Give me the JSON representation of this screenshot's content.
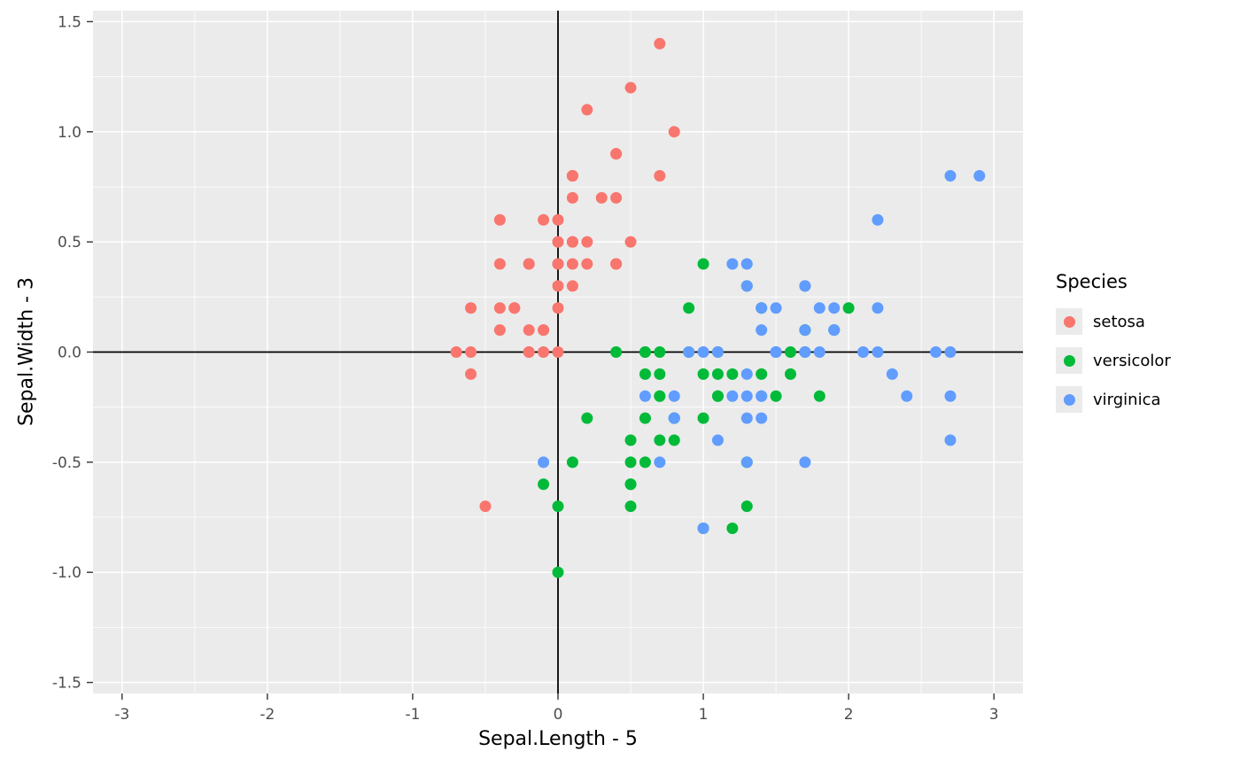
{
  "theme": {
    "panel_bg": "#EBEBEB",
    "grid_color": "#FFFFFF",
    "axis_line_color": "#000000",
    "tick_color": "#333333",
    "tick_label_color": "#4D4D4D",
    "legend_key_bg": "#EBEBEB"
  },
  "chart_data": {
    "type": "scatter",
    "title": "",
    "xlabel": "Sepal.Length - 5",
    "ylabel": "Sepal.Width - 3",
    "xlim": [
      -3.2,
      3.2
    ],
    "ylim": [
      -1.55,
      1.55
    ],
    "grid": true,
    "x_ticks": [
      -3,
      -2,
      -1,
      0,
      1,
      2,
      3
    ],
    "y_ticks": [
      -1.5,
      -1.0,
      -0.5,
      0.0,
      0.5,
      1.0,
      1.5
    ],
    "x_tick_labels": [
      "-3",
      "-2",
      "-1",
      "0",
      "1",
      "2",
      "3"
    ],
    "y_tick_labels": [
      "-1.5",
      "-1.0",
      "-0.5",
      "0.0",
      "0.5",
      "1.0",
      "1.5"
    ],
    "x_minor": [
      -2.5,
      -1.5,
      -0.5,
      0.5,
      1.5,
      2.5
    ],
    "y_minor": [
      -1.25,
      -0.75,
      -0.25,
      0.25,
      0.75,
      1.25
    ],
    "reference_lines": {
      "hline_y": 0,
      "vline_x": 0
    },
    "legend": {
      "title": "Species",
      "position": "right",
      "entries": [
        {
          "label": "setosa",
          "color": "#F8766D"
        },
        {
          "label": "versicolor",
          "color": "#00BA38"
        },
        {
          "label": "virginica",
          "color": "#619CFF"
        }
      ]
    },
    "series": [
      {
        "name": "setosa",
        "color": "#F8766D",
        "points": [
          [
            0.1,
            0.5
          ],
          [
            -0.1,
            0.0
          ],
          [
            -0.3,
            0.2
          ],
          [
            -0.4,
            0.1
          ],
          [
            0.0,
            0.6
          ],
          [
            0.4,
            0.9
          ],
          [
            -0.4,
            0.4
          ],
          [
            0.0,
            0.4
          ],
          [
            -0.6,
            -0.1
          ],
          [
            -0.1,
            0.1
          ],
          [
            0.4,
            0.7
          ],
          [
            -0.2,
            0.4
          ],
          [
            -0.2,
            0.0
          ],
          [
            -0.7,
            0.0
          ],
          [
            0.8,
            1.0
          ],
          [
            0.7,
            1.4
          ],
          [
            0.4,
            0.9
          ],
          [
            0.1,
            0.5
          ],
          [
            0.7,
            0.8
          ],
          [
            0.1,
            0.8
          ],
          [
            0.4,
            0.4
          ],
          [
            0.1,
            0.7
          ],
          [
            -0.4,
            0.6
          ],
          [
            0.1,
            0.3
          ],
          [
            -0.2,
            0.4
          ],
          [
            0.0,
            0.0
          ],
          [
            0.0,
            0.4
          ],
          [
            0.2,
            0.5
          ],
          [
            0.2,
            0.4
          ],
          [
            -0.3,
            0.2
          ],
          [
            -0.2,
            0.1
          ],
          [
            0.4,
            0.4
          ],
          [
            0.2,
            1.1
          ],
          [
            0.5,
            1.2
          ],
          [
            -0.1,
            0.1
          ],
          [
            0.0,
            0.2
          ],
          [
            0.5,
            0.5
          ],
          [
            -0.1,
            0.6
          ],
          [
            -0.6,
            0.0
          ],
          [
            0.1,
            0.4
          ],
          [
            0.0,
            0.5
          ],
          [
            -0.5,
            -0.7
          ],
          [
            -0.6,
            0.2
          ],
          [
            0.0,
            0.5
          ],
          [
            0.1,
            0.8
          ],
          [
            -0.2,
            0.0
          ],
          [
            0.1,
            0.8
          ],
          [
            -0.4,
            0.2
          ],
          [
            0.3,
            0.7
          ],
          [
            0.0,
            0.3
          ]
        ]
      },
      {
        "name": "versicolor",
        "color": "#00BA38",
        "points": [
          [
            2.0,
            0.2
          ],
          [
            1.4,
            0.2
          ],
          [
            1.9,
            0.1
          ],
          [
            0.5,
            -0.7
          ],
          [
            1.5,
            -0.2
          ],
          [
            0.7,
            -0.2
          ],
          [
            1.3,
            0.3
          ],
          [
            -0.1,
            -0.6
          ],
          [
            1.6,
            -0.1
          ],
          [
            0.2,
            -0.3
          ],
          [
            0.0,
            -1.0
          ],
          [
            0.9,
            0.0
          ],
          [
            1.0,
            -0.8
          ],
          [
            1.1,
            -0.1
          ],
          [
            0.6,
            -0.1
          ],
          [
            1.7,
            0.1
          ],
          [
            0.6,
            0.0
          ],
          [
            0.8,
            -0.3
          ],
          [
            1.2,
            -0.8
          ],
          [
            0.6,
            -0.5
          ],
          [
            0.9,
            0.2
          ],
          [
            1.1,
            -0.2
          ],
          [
            1.3,
            -0.5
          ],
          [
            1.1,
            -0.2
          ],
          [
            1.4,
            -0.1
          ],
          [
            1.6,
            0.0
          ],
          [
            1.8,
            -0.2
          ],
          [
            1.7,
            0.0
          ],
          [
            1.0,
            -0.1
          ],
          [
            0.7,
            -0.4
          ],
          [
            0.5,
            -0.6
          ],
          [
            0.5,
            -0.6
          ],
          [
            0.8,
            -0.3
          ],
          [
            1.0,
            -0.3
          ],
          [
            0.4,
            0.0
          ],
          [
            1.0,
            0.4
          ],
          [
            1.7,
            0.1
          ],
          [
            1.3,
            -0.7
          ],
          [
            0.6,
            0.0
          ],
          [
            0.5,
            -0.5
          ],
          [
            0.5,
            -0.4
          ],
          [
            1.1,
            0.0
          ],
          [
            0.8,
            -0.4
          ],
          [
            0.0,
            -0.7
          ],
          [
            0.6,
            -0.3
          ],
          [
            0.7,
            0.0
          ],
          [
            0.7,
            -0.1
          ],
          [
            1.2,
            -0.1
          ],
          [
            0.1,
            -0.5
          ],
          [
            0.7,
            -0.2
          ]
        ]
      },
      {
        "name": "virginica",
        "color": "#619CFF",
        "points": [
          [
            1.3,
            0.3
          ],
          [
            0.8,
            -0.3
          ],
          [
            2.1,
            0.0
          ],
          [
            1.3,
            -0.1
          ],
          [
            1.5,
            0.0
          ],
          [
            2.6,
            0.0
          ],
          [
            -0.1,
            -0.5
          ],
          [
            2.3,
            -0.1
          ],
          [
            1.7,
            -0.5
          ],
          [
            2.2,
            0.6
          ],
          [
            1.5,
            0.2
          ],
          [
            1.4,
            -0.3
          ],
          [
            1.8,
            0.0
          ],
          [
            0.7,
            -0.5
          ],
          [
            0.8,
            -0.2
          ],
          [
            1.4,
            0.2
          ],
          [
            1.5,
            0.0
          ],
          [
            2.7,
            0.8
          ],
          [
            2.7,
            -0.4
          ],
          [
            1.0,
            -0.8
          ],
          [
            1.9,
            0.2
          ],
          [
            0.6,
            -0.2
          ],
          [
            2.7,
            -0.2
          ],
          [
            1.3,
            -0.3
          ],
          [
            1.7,
            0.3
          ],
          [
            2.2,
            0.2
          ],
          [
            1.2,
            -0.2
          ],
          [
            1.1,
            0.0
          ],
          [
            1.4,
            -0.2
          ],
          [
            2.2,
            0.0
          ],
          [
            2.4,
            -0.2
          ],
          [
            2.9,
            0.8
          ],
          [
            1.4,
            -0.2
          ],
          [
            1.3,
            -0.2
          ],
          [
            1.1,
            -0.4
          ],
          [
            2.7,
            0.0
          ],
          [
            1.3,
            0.4
          ],
          [
            1.4,
            0.1
          ],
          [
            1.0,
            0.0
          ],
          [
            1.9,
            0.1
          ],
          [
            1.7,
            0.1
          ],
          [
            1.9,
            0.1
          ],
          [
            0.8,
            -0.3
          ],
          [
            1.8,
            0.2
          ],
          [
            1.7,
            0.3
          ],
          [
            1.7,
            0.0
          ],
          [
            1.3,
            -0.5
          ],
          [
            1.5,
            0.0
          ],
          [
            1.2,
            0.4
          ],
          [
            0.9,
            0.0
          ]
        ]
      }
    ]
  }
}
